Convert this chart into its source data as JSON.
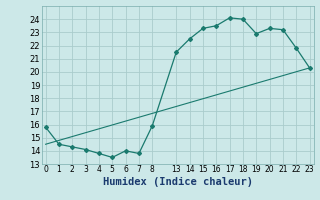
{
  "xlabel": "Humidex (Indice chaleur)",
  "bg_color": "#cce8e8",
  "grid_color": "#aacccc",
  "line_color": "#1a7a6e",
  "curve1_hours": [
    0,
    1,
    2,
    3,
    4,
    5,
    6,
    7,
    8,
    13,
    14,
    15,
    16,
    17,
    18,
    19,
    20,
    21,
    22,
    23
  ],
  "curve1_y": [
    15.8,
    14.5,
    14.3,
    14.1,
    13.8,
    13.5,
    14.0,
    13.8,
    15.9,
    21.5,
    22.5,
    23.3,
    23.5,
    24.1,
    24.0,
    22.9,
    23.3,
    23.2,
    21.8,
    20.3
  ],
  "curve2_hours": [
    0,
    23
  ],
  "curve2_y": [
    14.5,
    20.3
  ],
  "ylim": [
    13,
    25
  ],
  "yticks": [
    13,
    14,
    15,
    16,
    17,
    18,
    19,
    20,
    21,
    22,
    23,
    24
  ],
  "xtick_hours": [
    0,
    1,
    2,
    3,
    4,
    5,
    6,
    7,
    8,
    13,
    14,
    15,
    16,
    17,
    18,
    19,
    20,
    21,
    22,
    23
  ],
  "xtick_labels": [
    "0",
    "1",
    "2",
    "3",
    "4",
    "5",
    "6",
    "7",
    "8",
    "13",
    "14",
    "15",
    "16",
    "17",
    "18",
    "19",
    "20",
    "21",
    "22",
    "23"
  ],
  "tick_fontsize": 5.5,
  "xlabel_fontsize": 7.5,
  "ytick_fontsize": 6.0
}
